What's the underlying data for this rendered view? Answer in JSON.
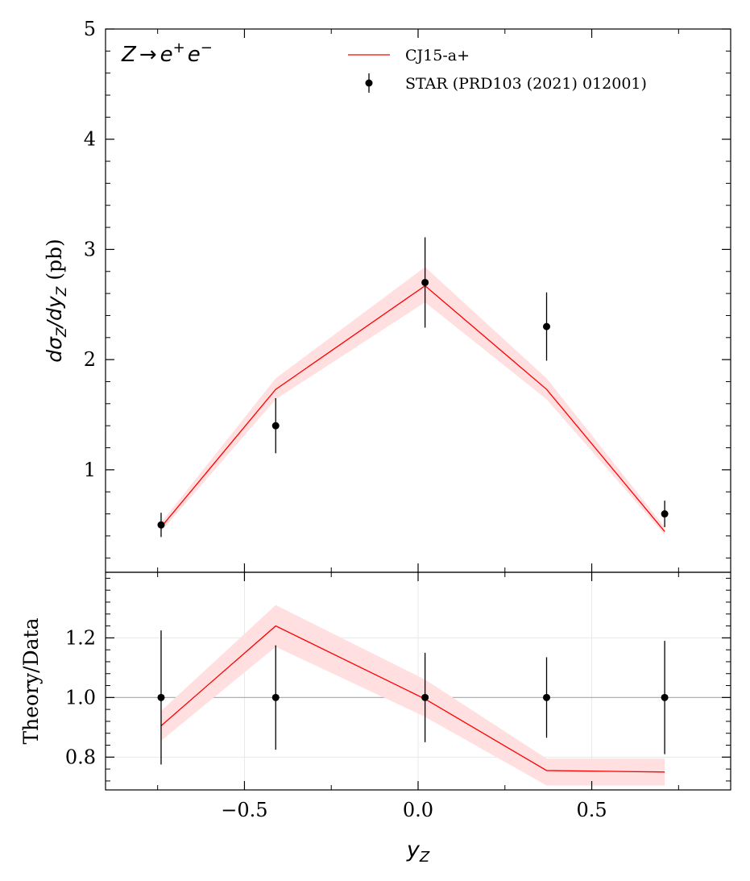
{
  "chart_data": [
    {
      "type": "line",
      "panel": "top",
      "title": "",
      "xlabel": "",
      "ylabel": "dσ_Z/dy_Z (pb)",
      "ylabel_prefix": "dσ",
      "ylabel_sub1": "Z",
      "ylabel_mid": "/dy",
      "ylabel_sub2": "Z",
      "ylabel_unit": " (pb)",
      "annotation": "Z → e⁺e⁻",
      "annotation_parts": {
        "base": "Z",
        "arrow": "→",
        "e1": "e",
        "sup1": "+",
        "e2": "e",
        "sup2": "−"
      },
      "xlim": [
        -0.9,
        0.9
      ],
      "ylim": [
        0.07,
        5.0
      ],
      "yticks": [
        1,
        2,
        3,
        4,
        5
      ],
      "ytick_labels": [
        "1",
        "2",
        "3",
        "4",
        "5"
      ],
      "grid": false,
      "legend_position": "top-right",
      "series": [
        {
          "name": "CJ15-a+",
          "kind": "theory",
          "color": "#ff0000",
          "band_color": "#ffdfe0",
          "x": [
            -0.74,
            -0.41,
            0.02,
            0.37,
            0.71
          ],
          "y": [
            0.48,
            1.73,
            2.67,
            1.73,
            0.44
          ],
          "band_low": [
            0.44,
            1.64,
            2.52,
            1.64,
            0.41
          ],
          "band_high": [
            0.52,
            1.83,
            2.84,
            1.83,
            0.48
          ]
        },
        {
          "name": "STAR (PRD103 (2021) 012001)",
          "kind": "data",
          "color": "#000000",
          "x": [
            -0.74,
            -0.41,
            0.02,
            0.37,
            0.71
          ],
          "y": [
            0.5,
            1.4,
            2.7,
            2.3,
            0.6
          ],
          "yerr": [
            0.11,
            0.25,
            0.41,
            0.31,
            0.12
          ]
        }
      ]
    },
    {
      "type": "line",
      "panel": "bottom",
      "title": "",
      "xlabel": "y_Z",
      "xlabel_base": "y",
      "xlabel_sub": "Z",
      "ylabel": "Theory/Data",
      "xlim": [
        -0.9,
        0.9
      ],
      "ylim": [
        0.69,
        1.42
      ],
      "xticks": [
        -0.5,
        0.0,
        0.5
      ],
      "xtick_labels": [
        "−0.5",
        "0.0",
        "0.5"
      ],
      "yticks": [
        0.8,
        1.0,
        1.2
      ],
      "ytick_labels": [
        "0.8",
        "1.0",
        "1.2"
      ],
      "grid": true,
      "reference_line": 1.0,
      "series": [
        {
          "name": "CJ15-a+",
          "kind": "ratio",
          "color": "#ff0000",
          "band_color": "#ffdfe0",
          "x": [
            -0.74,
            -0.41,
            0.02,
            0.37,
            0.71
          ],
          "y": [
            0.905,
            1.24,
            0.995,
            0.755,
            0.75
          ],
          "band_low": [
            0.855,
            1.17,
            0.935,
            0.705,
            0.705
          ],
          "band_high": [
            0.955,
            1.31,
            1.06,
            0.795,
            0.795
          ]
        },
        {
          "name": "STAR (PRD103 (2021) 012001)",
          "kind": "data",
          "color": "#000000",
          "x": [
            -0.74,
            -0.41,
            0.02,
            0.37,
            0.71
          ],
          "y": [
            1.0,
            1.0,
            1.0,
            1.0,
            1.0
          ],
          "yerr": [
            0.225,
            0.175,
            0.15,
            0.135,
            0.19
          ]
        }
      ]
    }
  ]
}
